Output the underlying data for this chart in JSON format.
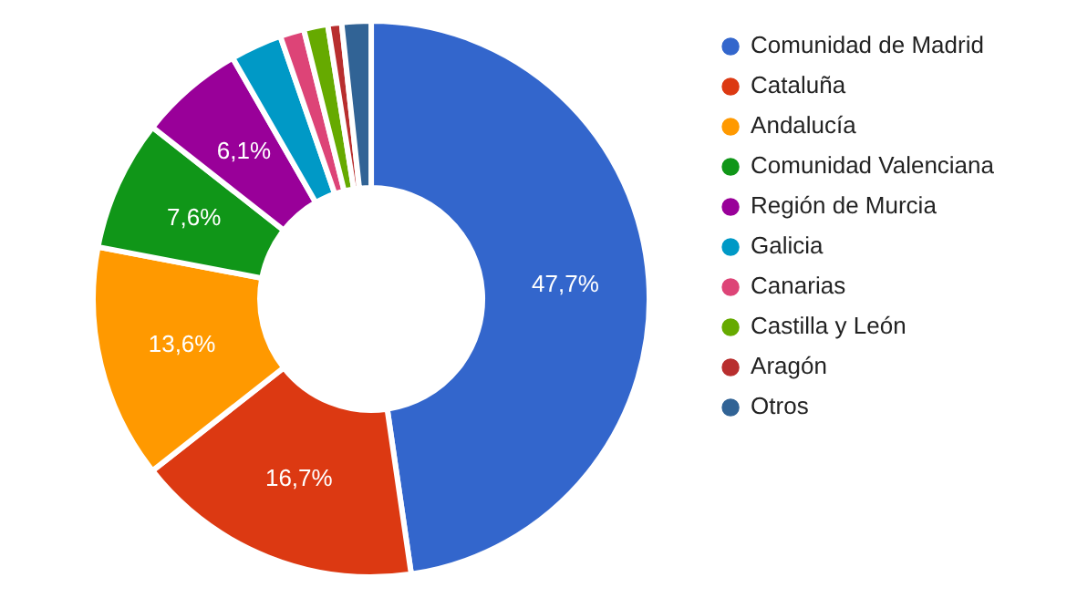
{
  "chart_data": {
    "type": "donut",
    "categories": [
      "Comunidad de Madrid",
      "Cataluña",
      "Andalucía",
      "Comunidad Valenciana",
      "Región de Murcia",
      "Galicia",
      "Canarias",
      "Castilla y León",
      "Aragón",
      "Otros"
    ],
    "values": [
      47.7,
      16.7,
      13.6,
      7.6,
      6.1,
      3.0,
      1.4,
      1.4,
      0.8,
      1.7
    ],
    "colors": [
      "#3366cc",
      "#dc3912",
      "#ff9900",
      "#109618",
      "#990099",
      "#0099c6",
      "#dd4477",
      "#66aa00",
      "#b82e2e",
      "#316395"
    ],
    "value_labels": [
      "47,7%",
      "16,7%",
      "13,6%",
      "7,6%",
      "6,1%",
      null,
      null,
      null,
      null,
      null
    ],
    "legend": "right"
  }
}
